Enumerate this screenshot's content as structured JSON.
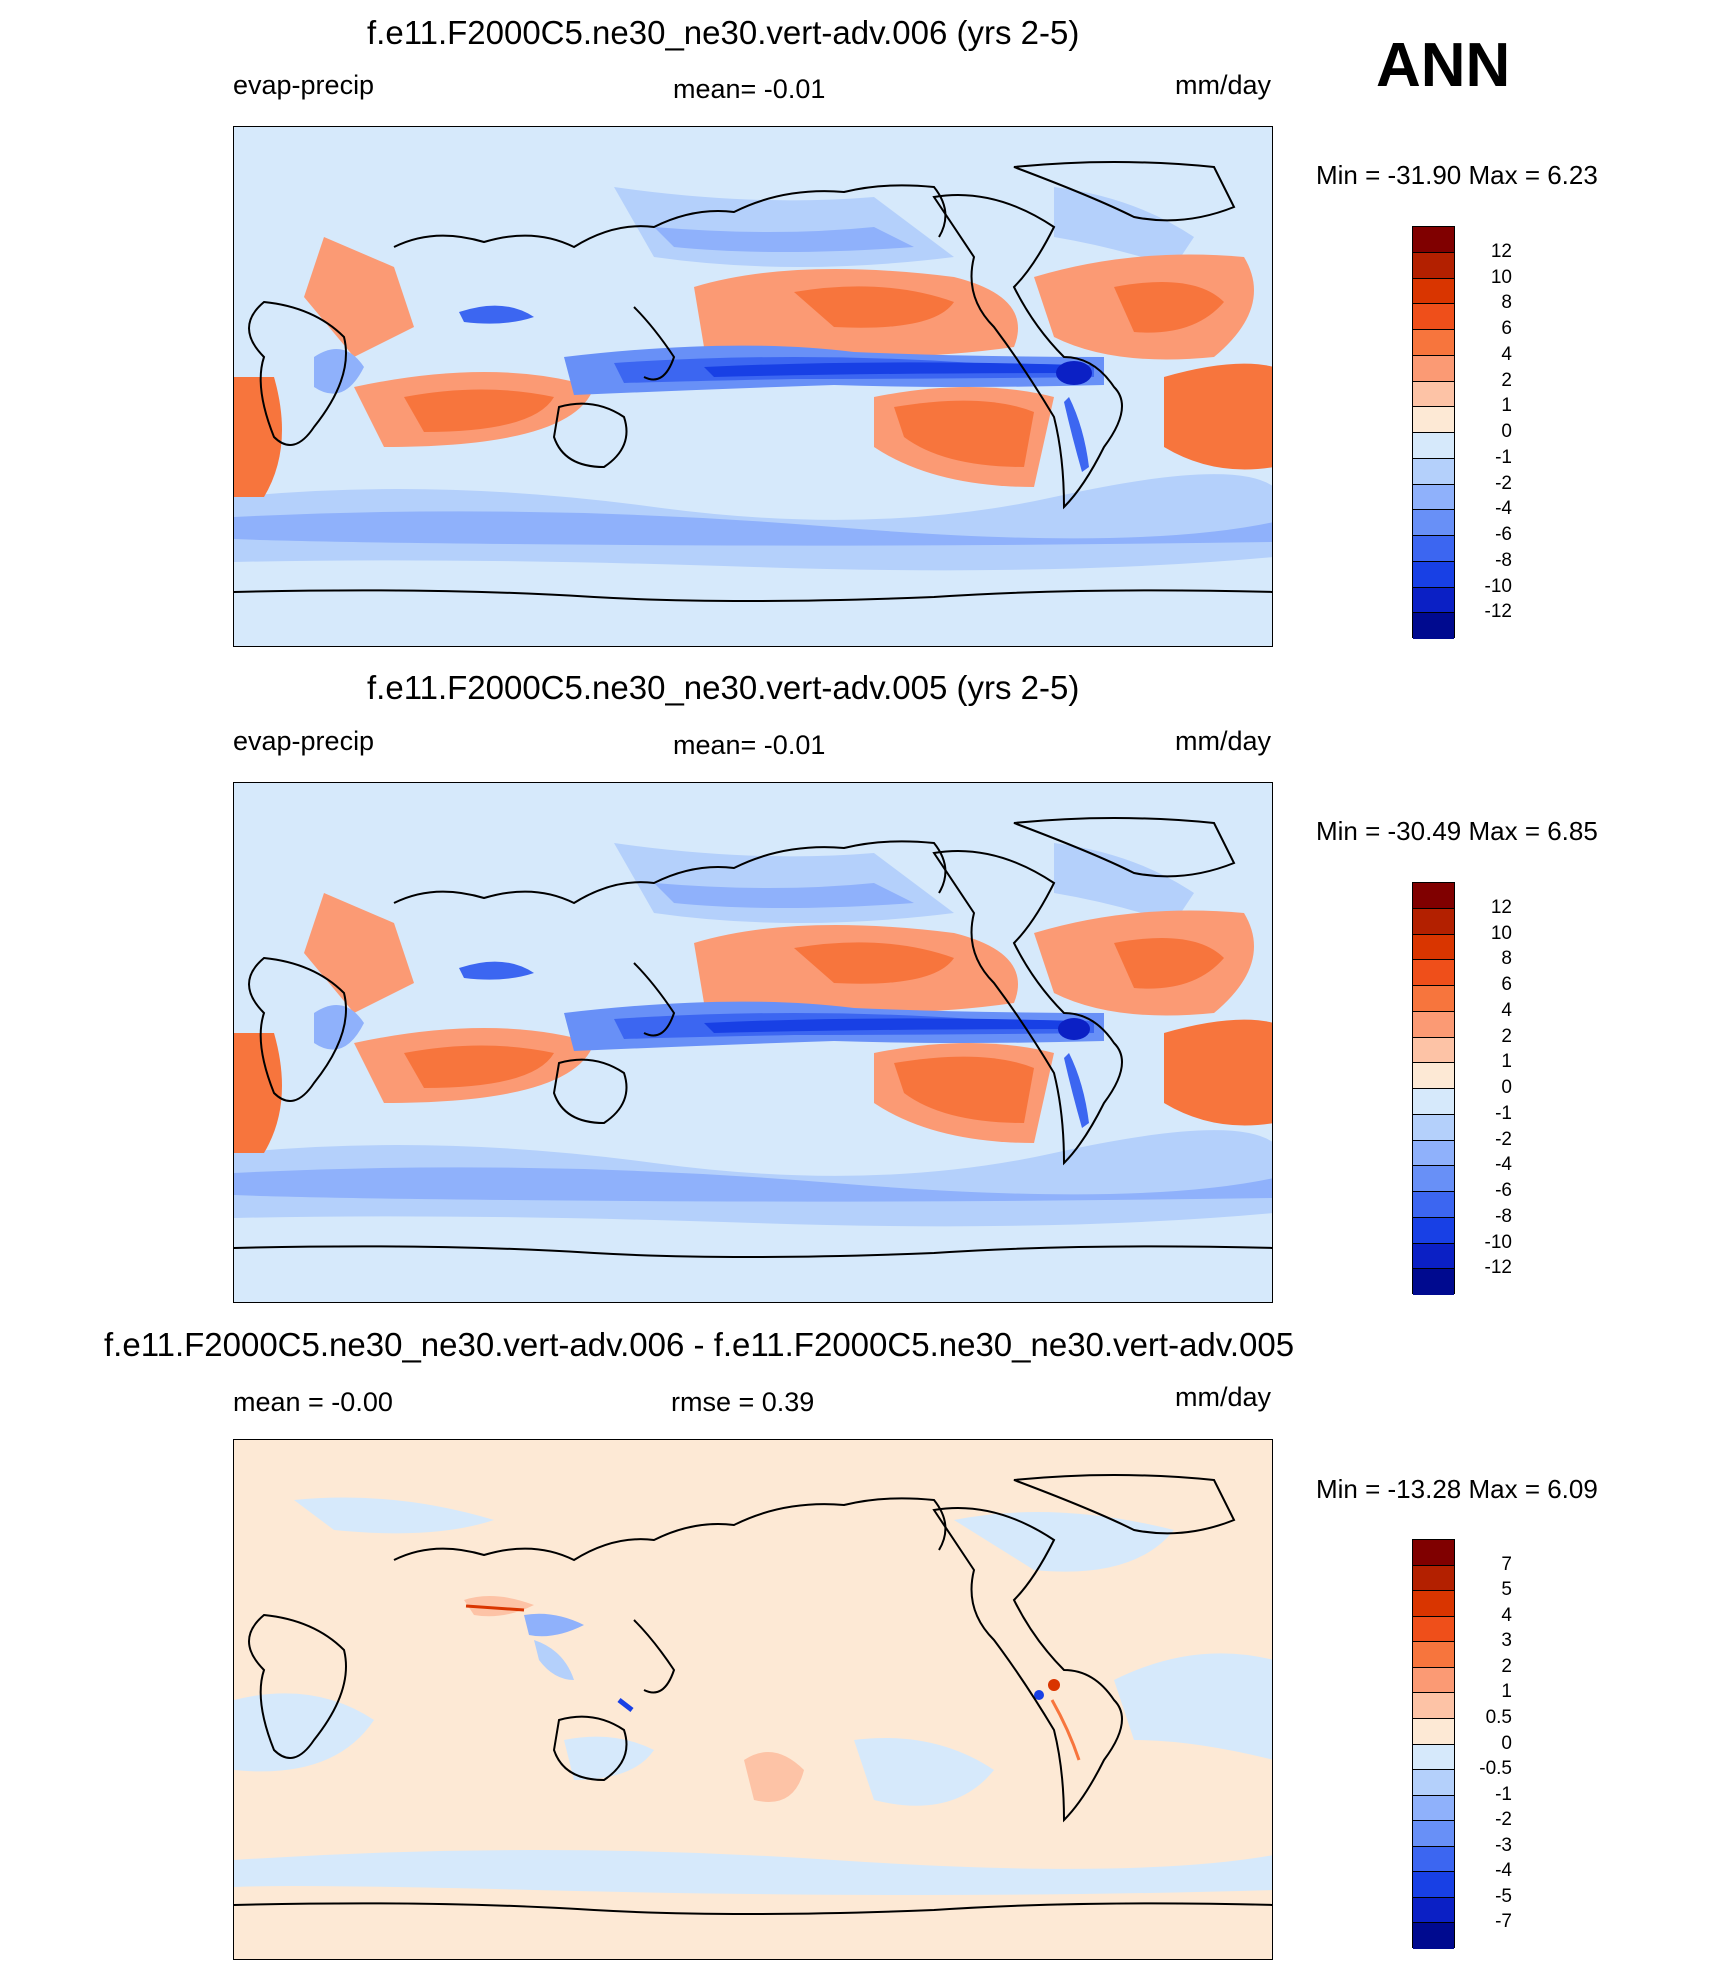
{
  "season": "ANN",
  "palette_full": [
    "#800000",
    "#b32000",
    "#d93500",
    "#ef4f1a",
    "#f7753d",
    "#fb9a74",
    "#fdc3a6",
    "#fde9d5",
    "#d6e9fb",
    "#b4d0fb",
    "#8fb1fb",
    "#6890f7",
    "#3c66f1",
    "#1840e5",
    "#0b20c5",
    "#000a8f"
  ],
  "palette_diff": [
    "#800000",
    "#b32000",
    "#d93500",
    "#ef4f1a",
    "#f7753d",
    "#fb9a74",
    "#fdc3a6",
    "#fde9d5",
    "#d6e9fb",
    "#b4d0fb",
    "#8fb1fb",
    "#6890f7",
    "#3c66f1",
    "#1840e5",
    "#0b20c5",
    "#000a8f"
  ],
  "panels": [
    {
      "title": "f.e11.F2000C5.ne30_ne30.vert-adv.006 (yrs 2-5)",
      "left_label": "evap-precip",
      "center_label": "mean=  -0.01",
      "units": "mm/day",
      "minmax": "Min = -31.90 Max =   6.23",
      "ticks": [
        "12",
        "10",
        "8",
        "6",
        "4",
        "2",
        "1",
        "0",
        "-1",
        "-2",
        "-4",
        "-6",
        "-8",
        "-10",
        "-12"
      ]
    },
    {
      "title": "f.e11.F2000C5.ne30_ne30.vert-adv.005 (yrs 2-5)",
      "left_label": "evap-precip",
      "center_label": "mean=  -0.01",
      "units": "mm/day",
      "minmax": "Min = -30.49 Max =   6.85",
      "ticks": [
        "12",
        "10",
        "8",
        "6",
        "4",
        "2",
        "1",
        "0",
        "-1",
        "-2",
        "-4",
        "-6",
        "-8",
        "-10",
        "-12"
      ]
    },
    {
      "title": "f.e11.F2000C5.ne30_ne30.vert-adv.006 - f.e11.F2000C5.ne30_ne30.vert-adv.005",
      "left_label": "mean =  -0.00",
      "center_label": "rmse =   0.39",
      "units": "mm/day",
      "minmax": "Min = -13.28 Max =   6.09",
      "ticks": [
        "7",
        "5",
        "4",
        "3",
        "2",
        "1",
        "0.5",
        "0",
        "-0.5",
        "-1",
        "-2",
        "-3",
        "-4",
        "-5",
        "-7"
      ]
    }
  ],
  "chart_data": {
    "type": "heatmap",
    "variable": "evap-precip",
    "units": "mm/day",
    "season": "ANN",
    "panels": [
      {
        "name": "f.e11.F2000C5.ne30_ne30.vert-adv.006 (yrs 2-5)",
        "mean": -0.01,
        "min": -31.9,
        "max": 6.23,
        "colorbar_levels": [
          -12,
          -10,
          -8,
          -6,
          -4,
          -2,
          -1,
          0,
          1,
          2,
          4,
          6,
          8,
          10,
          12
        ]
      },
      {
        "name": "f.e11.F2000C5.ne30_ne30.vert-adv.005 (yrs 2-5)",
        "mean": -0.01,
        "min": -30.49,
        "max": 6.85,
        "colorbar_levels": [
          -12,
          -10,
          -8,
          -6,
          -4,
          -2,
          -1,
          0,
          1,
          2,
          4,
          6,
          8,
          10,
          12
        ]
      },
      {
        "name": "f.e11.F2000C5.ne30_ne30.vert-adv.006 - f.e11.F2000C5.ne30_ne30.vert-adv.005",
        "mean": -0.0,
        "rmse": 0.39,
        "min": -13.28,
        "max": 6.09,
        "colorbar_levels": [
          -7,
          -5,
          -4,
          -3,
          -2,
          -1,
          -0.5,
          0,
          0.5,
          1,
          2,
          3,
          4,
          5,
          7
        ]
      }
    ]
  }
}
